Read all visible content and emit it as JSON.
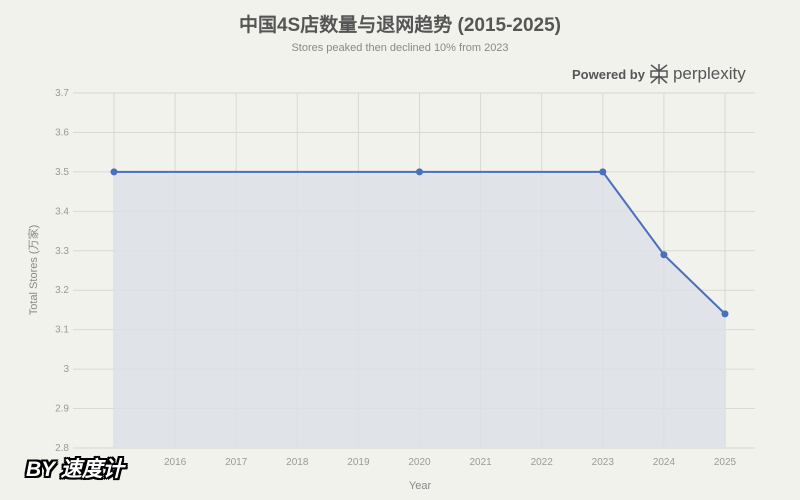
{
  "chart_data": {
    "type": "area",
    "title": "中国4S店数量与退网趋势 (2015-2025)",
    "subtitle": "Stores peaked then declined 10% from 2023",
    "xlabel": "Year",
    "ylabel": "Total Stores (万家)",
    "x_ticks": [
      "2016",
      "2017",
      "2018",
      "2019",
      "2020",
      "2021",
      "2022",
      "2023",
      "2024",
      "2025"
    ],
    "y_ticks": [
      "2.8",
      "2.9",
      "3",
      "3.1",
      "3.2",
      "3.3",
      "3.4",
      "3.5",
      "3.6",
      "3.7"
    ],
    "xlim": [
      2015,
      2025
    ],
    "ylim": [
      2.8,
      3.7
    ],
    "grid": true,
    "points": [
      {
        "x": 2015,
        "y": 3.5
      },
      {
        "x": 2020,
        "y": 3.5
      },
      {
        "x": 2023,
        "y": 3.5
      },
      {
        "x": 2024,
        "y": 3.29
      },
      {
        "x": 2025,
        "y": 3.14
      }
    ],
    "colors": {
      "line": "#4a6fbd",
      "fill": "#dde1e5",
      "grid": "#d8d8d4"
    }
  },
  "brand": {
    "powered_by": "Powered by",
    "name": "perplexity",
    "icon": "perplexity-logo-icon"
  },
  "watermark": "BY 速度计"
}
